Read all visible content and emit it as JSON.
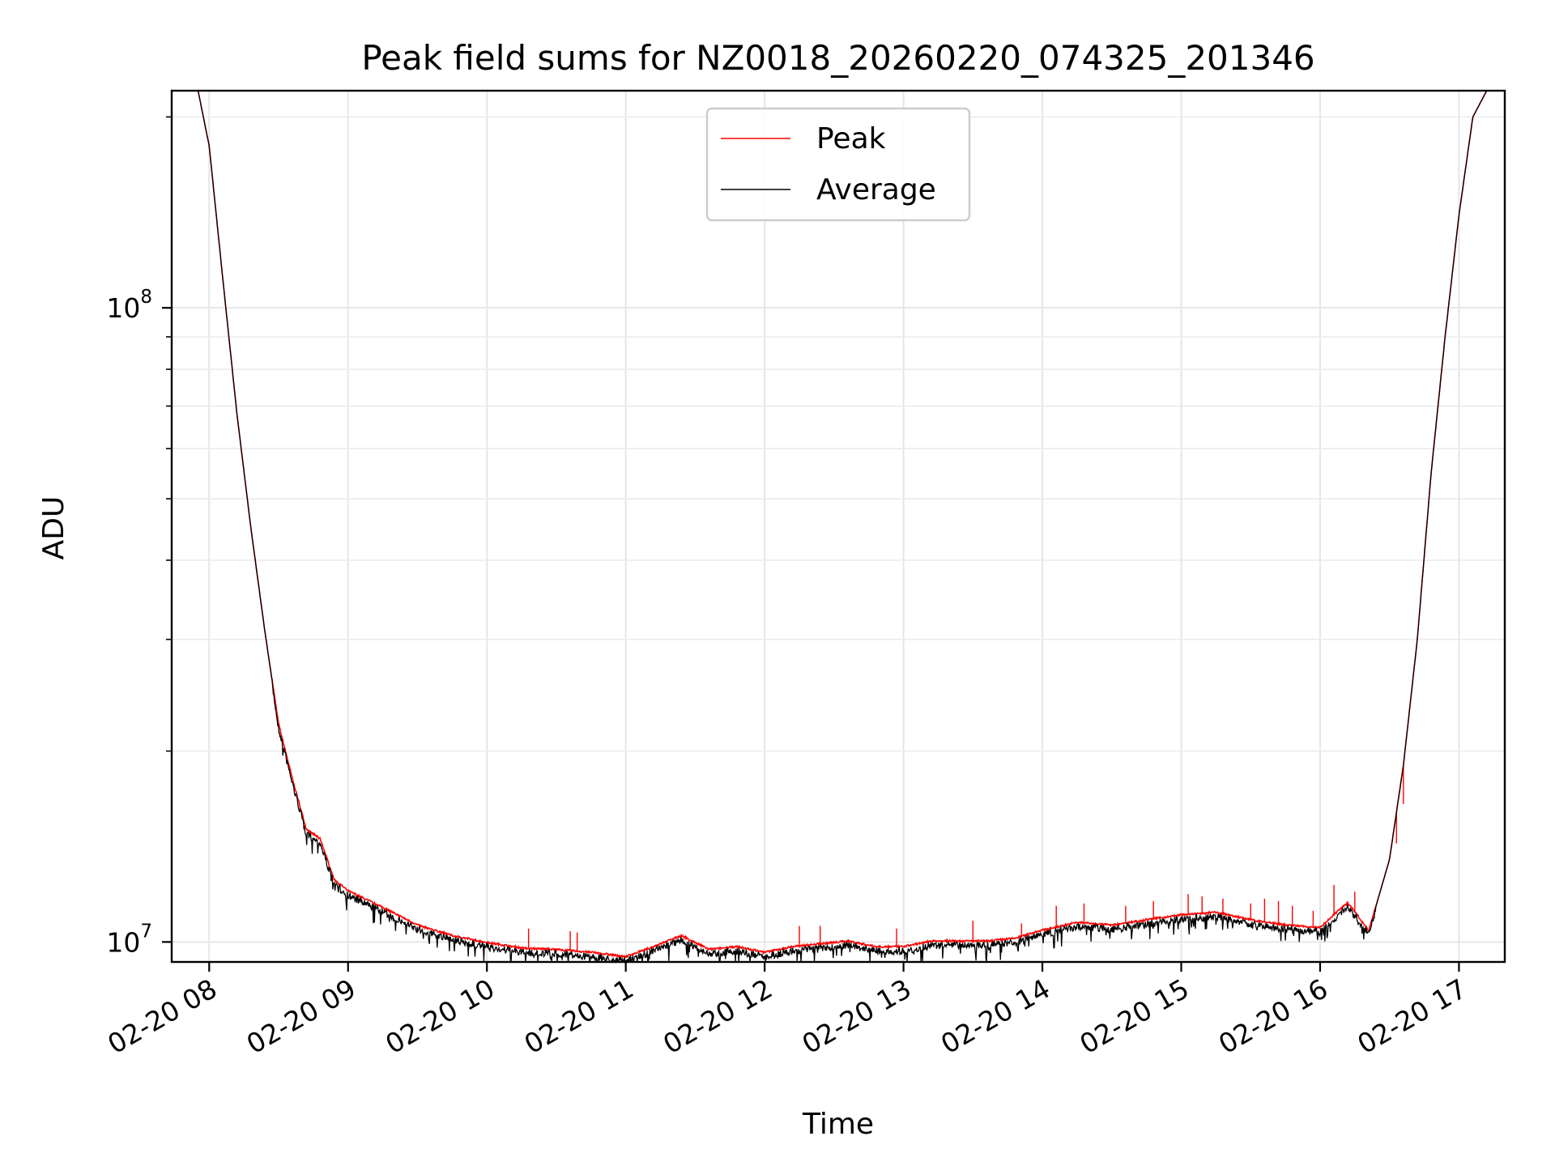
{
  "chart_data": {
    "type": "line",
    "title": "Peak field sums for NZ0018_20260220_074325_201346",
    "xlabel": "Time",
    "ylabel": "ADU",
    "yscale": "log",
    "xlim": [
      7.73,
      17.33
    ],
    "ylim": [
      9300000,
      220000000
    ],
    "grid": true,
    "legend_position": "top-center",
    "x_ticks": [
      {
        "value": 8,
        "label": "02-20 08"
      },
      {
        "value": 9,
        "label": "02-20 09"
      },
      {
        "value": 10,
        "label": "02-20 10"
      },
      {
        "value": 11,
        "label": "02-20 11"
      },
      {
        "value": 12,
        "label": "02-20 12"
      },
      {
        "value": 13,
        "label": "02-20 13"
      },
      {
        "value": 14,
        "label": "02-20 14"
      },
      {
        "value": 15,
        "label": "02-20 15"
      },
      {
        "value": 16,
        "label": "02-20 16"
      },
      {
        "value": 17,
        "label": "02-20 17"
      }
    ],
    "y_ticks": [
      {
        "value": 10000000,
        "base": "10",
        "exp": "7"
      },
      {
        "value": 100000000,
        "base": "10",
        "exp": "8"
      }
    ],
    "series": [
      {
        "name": "Peak",
        "color": "#ff0000"
      },
      {
        "name": "Average",
        "color": "#000000"
      }
    ],
    "x_hours": [
      7.92,
      8.0,
      8.1,
      8.2,
      8.3,
      8.4,
      8.5,
      8.6,
      8.7,
      8.8,
      8.9,
      9.0,
      9.25,
      9.5,
      9.75,
      10.0,
      10.25,
      10.5,
      10.75,
      11.0,
      11.2,
      11.4,
      11.6,
      11.8,
      12.0,
      12.2,
      12.4,
      12.6,
      12.8,
      13.0,
      13.2,
      13.4,
      13.6,
      13.8,
      14.0,
      14.25,
      14.5,
      14.75,
      15.0,
      15.25,
      15.5,
      15.75,
      16.0,
      16.1,
      16.2,
      16.35,
      16.5,
      16.6,
      16.7,
      16.8,
      16.9,
      17.0,
      17.1,
      17.2,
      17.33
    ],
    "average_values": [
      220000000,
      180000000,
      110000000,
      68000000,
      45000000,
      31000000,
      22000000,
      18000000,
      15000000,
      14500000,
      12500000,
      12000000,
      11300000,
      10600000,
      10200000,
      9950000,
      9750000,
      9700000,
      9600000,
      9450000,
      9800000,
      10200000,
      9700000,
      9800000,
      9600000,
      9800000,
      9900000,
      10000000,
      9800000,
      9800000,
      10000000,
      10000000,
      10000000,
      10100000,
      10400000,
      10700000,
      10600000,
      10800000,
      11000000,
      11100000,
      10800000,
      10600000,
      10500000,
      11000000,
      11500000,
      10400000,
      13500000,
      19000000,
      30000000,
      55000000,
      90000000,
      140000000,
      200000000,
      220000000,
      220000000
    ],
    "peak_spikes": [
      {
        "x": 10.3,
        "y": 10500000
      },
      {
        "x": 10.6,
        "y": 10400000
      },
      {
        "x": 10.65,
        "y": 10350000
      },
      {
        "x": 12.25,
        "y": 10600000
      },
      {
        "x": 12.4,
        "y": 10600000
      },
      {
        "x": 12.95,
        "y": 10500000
      },
      {
        "x": 13.5,
        "y": 10800000
      },
      {
        "x": 13.85,
        "y": 10700000
      },
      {
        "x": 14.1,
        "y": 11400000
      },
      {
        "x": 14.3,
        "y": 11500000
      },
      {
        "x": 14.6,
        "y": 11400000
      },
      {
        "x": 14.8,
        "y": 11600000
      },
      {
        "x": 15.05,
        "y": 11900000
      },
      {
        "x": 15.15,
        "y": 11800000
      },
      {
        "x": 15.3,
        "y": 11700000
      },
      {
        "x": 15.5,
        "y": 11500000
      },
      {
        "x": 15.6,
        "y": 11700000
      },
      {
        "x": 15.7,
        "y": 11600000
      },
      {
        "x": 15.8,
        "y": 11400000
      },
      {
        "x": 15.95,
        "y": 11200000
      },
      {
        "x": 16.1,
        "y": 12300000
      },
      {
        "x": 16.25,
        "y": 12000000
      },
      {
        "x": 16.55,
        "y": 14300000
      },
      {
        "x": 16.6,
        "y": 16500000
      }
    ]
  }
}
